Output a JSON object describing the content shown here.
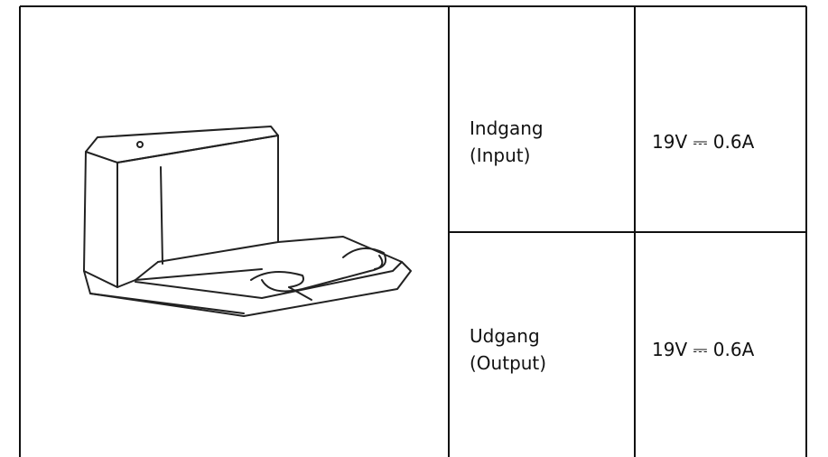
{
  "table": {
    "rows": [
      {
        "label": [
          "Indgang",
          "(Input)"
        ],
        "value": "19V ⎓ 0.6A"
      },
      {
        "label": [
          "Udgang",
          "(Output)"
        ],
        "value": "19V ⎓ 0.6A"
      }
    ]
  }
}
